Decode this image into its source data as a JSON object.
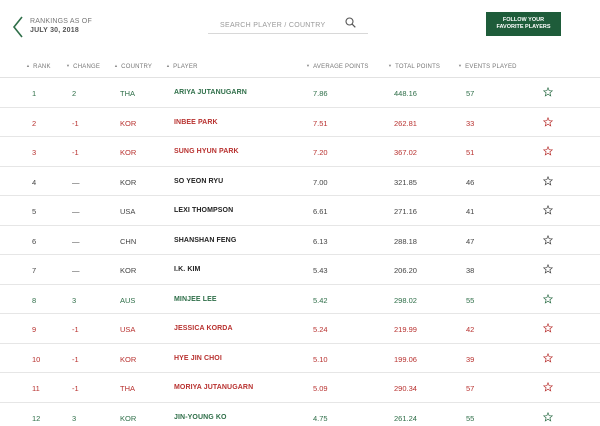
{
  "header": {
    "as_of_label": "RANKINGS AS OF",
    "as_of_date": "JULY 30, 2018",
    "search_placeholder": "SEARCH PLAYER / COUNTRY",
    "follow_line1": "FOLLOW YOUR",
    "follow_line2": "FAVORITE PLAYERS"
  },
  "columns": {
    "rank": "RANK",
    "change": "CHANGE",
    "country": "COUNTRY",
    "player": "PLAYER",
    "avg": "AVERAGE POINTS",
    "total": "TOTAL POINTS",
    "events": "EVENTS PLAYED"
  },
  "colors": {
    "up": "#2e6e48",
    "down": "#b8312f",
    "accent": "#1e5c3a"
  },
  "rows": [
    {
      "rank": "1",
      "change": "2",
      "country": "THA",
      "player": "ARIYA JUTANUGARN",
      "avg": "7.86",
      "total": "448.16",
      "events": "57",
      "trend": "up"
    },
    {
      "rank": "2",
      "change": "-1",
      "country": "KOR",
      "player": "INBEE PARK",
      "avg": "7.51",
      "total": "262.81",
      "events": "33",
      "trend": "down"
    },
    {
      "rank": "3",
      "change": "-1",
      "country": "KOR",
      "player": "SUNG HYUN PARK",
      "avg": "7.20",
      "total": "367.02",
      "events": "51",
      "trend": "down"
    },
    {
      "rank": "4",
      "change": "—",
      "country": "KOR",
      "player": "SO YEON RYU",
      "avg": "7.00",
      "total": "321.85",
      "events": "46",
      "trend": "same"
    },
    {
      "rank": "5",
      "change": "—",
      "country": "USA",
      "player": "LEXI THOMPSON",
      "avg": "6.61",
      "total": "271.16",
      "events": "41",
      "trend": "same"
    },
    {
      "rank": "6",
      "change": "—",
      "country": "CHN",
      "player": "SHANSHAN FENG",
      "avg": "6.13",
      "total": "288.18",
      "events": "47",
      "trend": "same"
    },
    {
      "rank": "7",
      "change": "—",
      "country": "KOR",
      "player": "I.K. KIM",
      "avg": "5.43",
      "total": "206.20",
      "events": "38",
      "trend": "same"
    },
    {
      "rank": "8",
      "change": "3",
      "country": "AUS",
      "player": "MINJEE LEE",
      "avg": "5.42",
      "total": "298.02",
      "events": "55",
      "trend": "up"
    },
    {
      "rank": "9",
      "change": "-1",
      "country": "USA",
      "player": "JESSICA KORDA",
      "avg": "5.24",
      "total": "219.99",
      "events": "42",
      "trend": "down"
    },
    {
      "rank": "10",
      "change": "-1",
      "country": "KOR",
      "player": "HYE JIN CHOI",
      "avg": "5.10",
      "total": "199.06",
      "events": "39",
      "trend": "down"
    },
    {
      "rank": "11",
      "change": "-1",
      "country": "THA",
      "player": "MORIYA JUTANUGARN",
      "avg": "5.09",
      "total": "290.34",
      "events": "57",
      "trend": "down"
    },
    {
      "rank": "12",
      "change": "3",
      "country": "KOR",
      "player": "JIN-YOUNG KO",
      "avg": "4.75",
      "total": "261.24",
      "events": "55",
      "trend": "up"
    }
  ]
}
